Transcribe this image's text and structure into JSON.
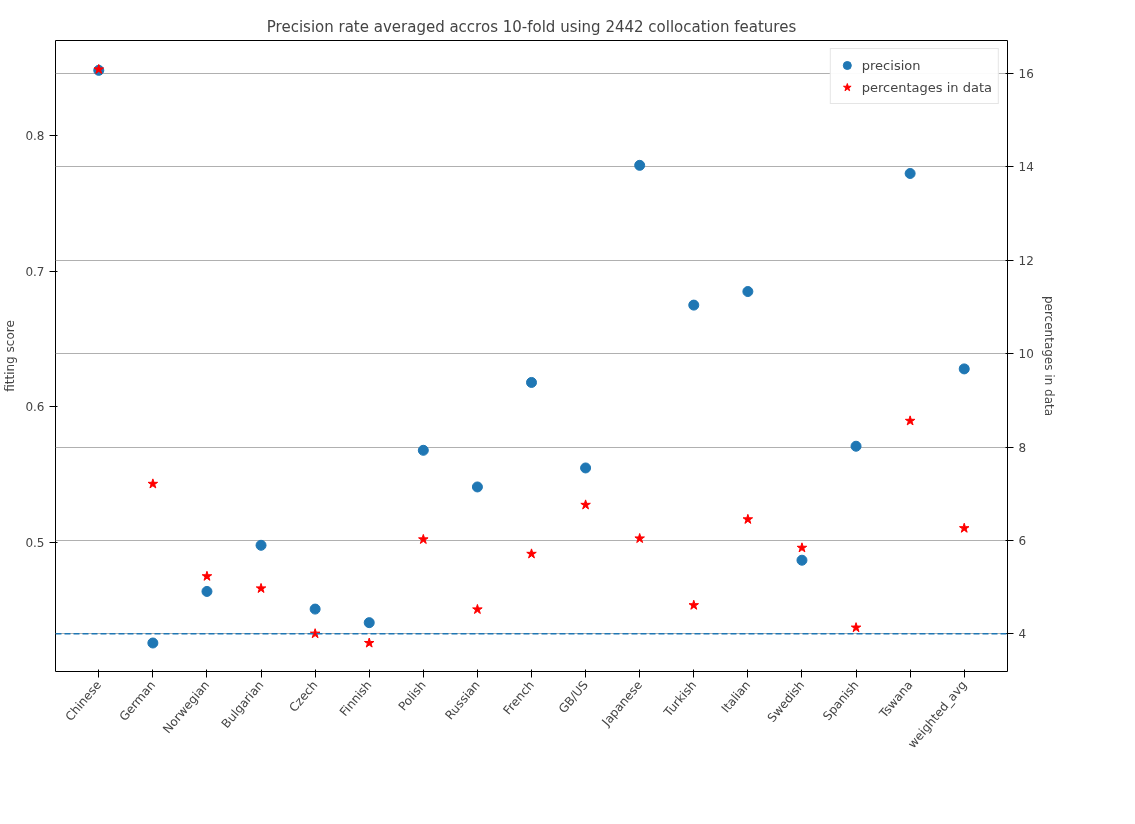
{
  "chart_data": {
    "type": "scatter",
    "title": "Precision rate averaged accros 10-fold using 2442 collocation features",
    "ylabel": "fitting score",
    "y2label": "percentages in data",
    "categories": [
      "Chinese",
      "German",
      "Norwegian",
      "Bulgarian",
      "Czech",
      "Finnish",
      "Polish",
      "Russian",
      "French",
      "GB/US",
      "Japanese",
      "Turkish",
      "Italian",
      "Swedish",
      "Spanish",
      "Tswana",
      "weighted_avg"
    ],
    "series": [
      {
        "name": "precision",
        "color": "#1f77b4",
        "marker": "circle",
        "values": [
          0.848,
          0.426,
          0.464,
          0.498,
          0.451,
          0.441,
          0.568,
          0.541,
          0.618,
          0.555,
          0.778,
          0.675,
          0.685,
          0.487,
          0.571,
          0.772,
          0.628
        ]
      },
      {
        "name": "percentages in data",
        "color": "#ff0000",
        "marker": "star",
        "axis": "y2",
        "values": [
          16.09,
          7.21,
          5.23,
          4.97,
          4.0,
          3.8,
          6.02,
          4.52,
          5.71,
          6.76,
          6.04,
          4.61,
          6.45,
          5.84,
          4.13,
          8.56,
          6.26
        ]
      }
    ],
    "ylim": [
      0.405,
      0.87
    ],
    "yticks": [
      0.5,
      0.6,
      0.7,
      0.8
    ],
    "y2lim": [
      3.19,
      16.71
    ],
    "y2ticks": [
      4,
      6,
      8,
      10,
      12,
      14,
      16
    ],
    "ref_lines": [
      {
        "axis": "y2",
        "value": 4.0,
        "color": "#1f77b4",
        "line_style": "dashed"
      }
    ],
    "grid": "y2",
    "legend": "top right"
  }
}
